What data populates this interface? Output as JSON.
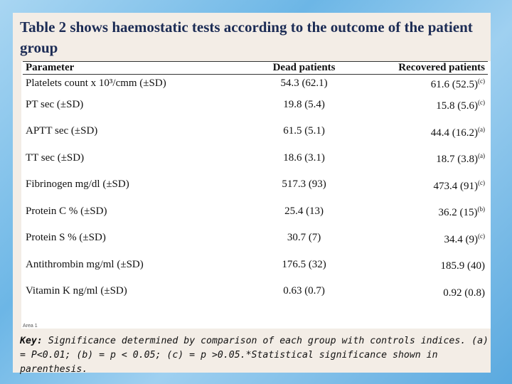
{
  "title": "Table 2 shows haemostatic tests according to the outcome of the patient group",
  "table": {
    "headers": [
      "Parameter",
      "Dead patients",
      "Recovered patients"
    ],
    "rows": [
      {
        "parameter": "Platelets count x 10³/cmm (±SD)",
        "dead": "54.3 (62.1)",
        "recovered": "61.6 (52.5)",
        "sig": "(c)"
      },
      {
        "parameter": "PT  sec (±SD)",
        "dead": "19.8  (5.4)",
        "recovered": "15.8 (5.6)",
        "sig": "(c)"
      },
      {
        "parameter": "APTT  sec (±SD)",
        "dead": "61.5  (5.1)",
        "recovered": "44.4 (16.2)",
        "sig": "(a)"
      },
      {
        "parameter": "TT  sec (±SD)",
        "dead": "18.6  (3.1)",
        "recovered": "18.7 (3.8)",
        "sig": "(a)"
      },
      {
        "parameter": "Fibrinogen mg/dl  (±SD)",
        "dead": "517.3  (93)",
        "recovered": "473.4 (91)",
        "sig": "(c)"
      },
      {
        "parameter": "Protein C % (±SD)",
        "dead": "25.4 (13)",
        "recovered": "36.2 (15)",
        "sig": "(b)"
      },
      {
        "parameter": "Protein S % (±SD)",
        "dead": "30.7  (7)",
        "recovered": "34.4  (9)",
        "sig": "(c)"
      },
      {
        "parameter": "Antithrombin mg/ml (±SD)",
        "dead": "176.5 (32)",
        "recovered": "185.9 (40)",
        "sig": ""
      },
      {
        "parameter": "Vitamin K  ng/ml  (±SD)",
        "dead": "0.63 (0.7)",
        "recovered": "0.92 (0.8)",
        "sig": ""
      }
    ],
    "corner_note": "Area 1"
  },
  "key": {
    "label": "Key:",
    "text": " Significance determined by comparison of each group with controls indices. (a) = P<0.01; (b) = p < 0.05; (c) = p >0.05.*Statistical significance shown in parenthesis."
  }
}
